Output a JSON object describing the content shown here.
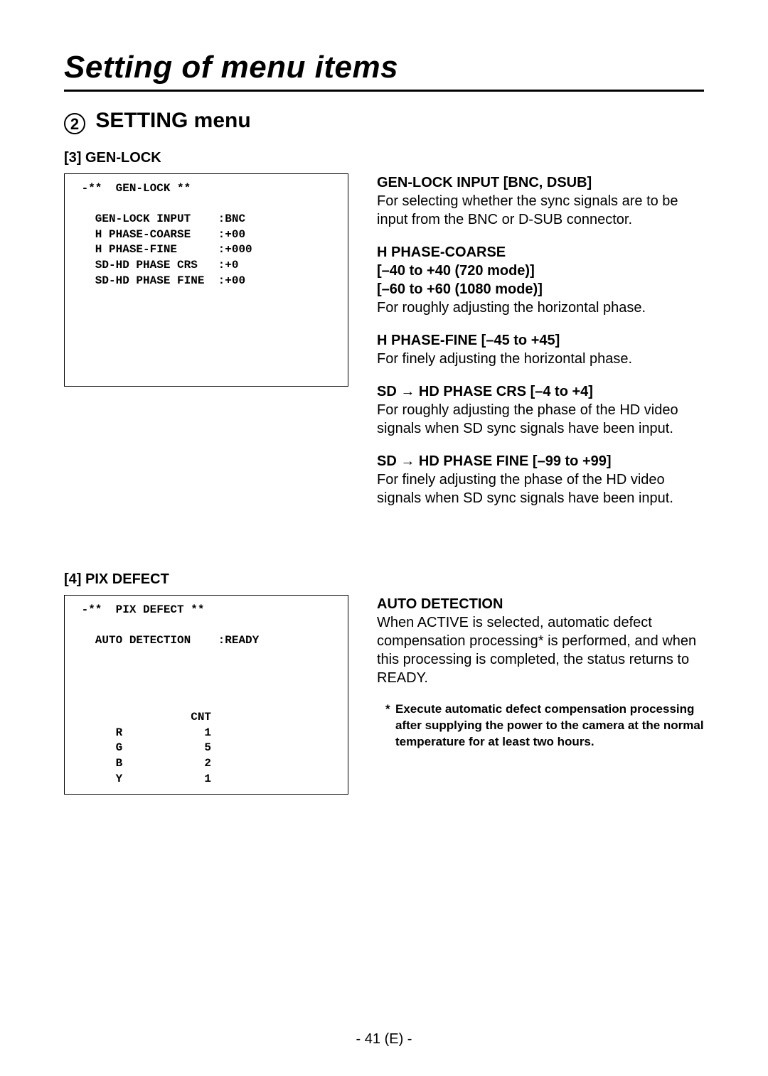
{
  "page_title": "Setting of menu items",
  "section_number": "2",
  "section_title": "SETTING menu",
  "page_number": "- 41 (E) -",
  "genlock": {
    "heading": "[3] GEN-LOCK",
    "menu_header": "-**  GEN-LOCK **",
    "rows": [
      {
        "label": "GEN-LOCK INPUT",
        "value": ":BNC"
      },
      {
        "label": "H PHASE-COARSE",
        "value": ":+00"
      },
      {
        "label": "H PHASE-FINE",
        "value": ":+000"
      },
      {
        "label": "SD-HD PHASE CRS",
        "value": ":+0"
      },
      {
        "label": "SD-HD PHASE FINE",
        "value": ":+00"
      }
    ],
    "desc": {
      "input_title": "GEN-LOCK INPUT [BNC, DSUB]",
      "input_body": "For selecting whether the sync signals are to be input from the BNC or D-SUB connector.",
      "coarse_t1": "H PHASE-COARSE",
      "coarse_t2": "[–40 to +40 (720 mode)]",
      "coarse_t3": "[–60 to +60 (1080 mode)]",
      "coarse_body": "For roughly adjusting the horizontal phase.",
      "fine_title": "H PHASE-FINE [–45 to +45]",
      "fine_body": "For finely adjusting the horizontal phase.",
      "sdcrs_pre": "SD ",
      "sdcrs_post": " HD PHASE CRS [–4 to +4]",
      "sdcrs_body": "For roughly adjusting the phase of the HD video signals when SD sync signals have been input.",
      "sdfine_pre": "SD ",
      "sdfine_post": " HD PHASE FINE [–99 to +99]",
      "sdfine_body": "For finely adjusting the phase of the HD video signals when SD sync signals have been input."
    }
  },
  "pixdefect": {
    "heading": "[4] PIX DEFECT",
    "menu_header": "-**  PIX DEFECT **",
    "auto_label": "AUTO DETECTION",
    "auto_value": ":READY",
    "cnt_header": "CNT",
    "channels": [
      {
        "ch": "R",
        "cnt": "1"
      },
      {
        "ch": "G",
        "cnt": "5"
      },
      {
        "ch": "B",
        "cnt": "2"
      },
      {
        "ch": "Y",
        "cnt": "1"
      }
    ],
    "desc": {
      "title": "AUTO DETECTION",
      "body": "When ACTIVE is selected, automatic defect compensation processing* is performed, and when this processing is completed, the status returns to READY.",
      "note": "Execute automatic defect compensation processing after supplying the power to the camera at the normal temperature for at least two hours."
    }
  }
}
